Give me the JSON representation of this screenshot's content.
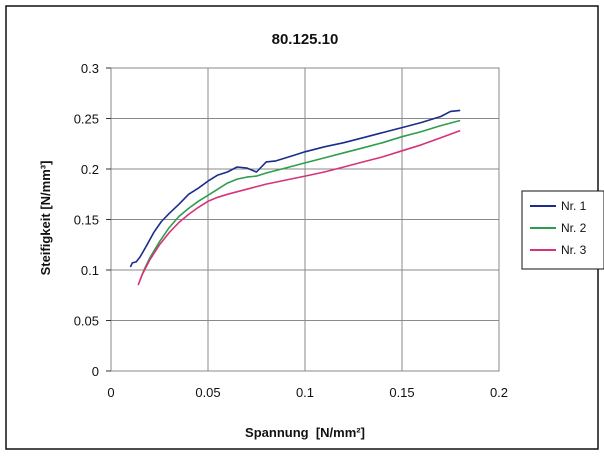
{
  "chart_data": {
    "type": "line",
    "title": "80.125.10",
    "xlabel": "Spannung  [N/mm²]",
    "ylabel": "Steifigkeit [N/mm³]",
    "xlim": [
      0,
      0.2
    ],
    "ylim": [
      0,
      0.3
    ],
    "x_ticks": [
      "0",
      "0.05",
      "0.1",
      "0.15",
      "0.2"
    ],
    "y_ticks": [
      "0",
      "0.05",
      "0.1",
      "0.15",
      "0.2",
      "0.25",
      "0.3"
    ],
    "grid": true,
    "legend_position": "right",
    "series": [
      {
        "name": "Nr. 1",
        "color": "#1a2d8a",
        "points": [
          [
            0.01,
            0.103
          ],
          [
            0.011,
            0.107
          ],
          [
            0.013,
            0.108
          ],
          [
            0.015,
            0.113
          ],
          [
            0.018,
            0.123
          ],
          [
            0.022,
            0.137
          ],
          [
            0.026,
            0.148
          ],
          [
            0.03,
            0.156
          ],
          [
            0.035,
            0.165
          ],
          [
            0.04,
            0.175
          ],
          [
            0.045,
            0.181
          ],
          [
            0.05,
            0.188
          ],
          [
            0.055,
            0.194
          ],
          [
            0.06,
            0.197
          ],
          [
            0.065,
            0.202
          ],
          [
            0.07,
            0.201
          ],
          [
            0.075,
            0.197
          ],
          [
            0.08,
            0.207
          ],
          [
            0.085,
            0.208
          ],
          [
            0.09,
            0.211
          ],
          [
            0.095,
            0.214
          ],
          [
            0.1,
            0.217
          ],
          [
            0.11,
            0.222
          ],
          [
            0.12,
            0.226
          ],
          [
            0.13,
            0.231
          ],
          [
            0.14,
            0.236
          ],
          [
            0.15,
            0.241
          ],
          [
            0.16,
            0.246
          ],
          [
            0.17,
            0.252
          ],
          [
            0.175,
            0.257
          ],
          [
            0.18,
            0.258
          ]
        ]
      },
      {
        "name": "Nr. 2",
        "color": "#2e9e4e",
        "points": [
          [
            0.015,
            0.09
          ],
          [
            0.017,
            0.1
          ],
          [
            0.02,
            0.112
          ],
          [
            0.025,
            0.128
          ],
          [
            0.03,
            0.142
          ],
          [
            0.035,
            0.153
          ],
          [
            0.04,
            0.161
          ],
          [
            0.045,
            0.168
          ],
          [
            0.05,
            0.174
          ],
          [
            0.055,
            0.18
          ],
          [
            0.06,
            0.186
          ],
          [
            0.065,
            0.19
          ],
          [
            0.07,
            0.192
          ],
          [
            0.075,
            0.193
          ],
          [
            0.08,
            0.196
          ],
          [
            0.09,
            0.201
          ],
          [
            0.1,
            0.206
          ],
          [
            0.11,
            0.211
          ],
          [
            0.12,
            0.216
          ],
          [
            0.13,
            0.221
          ],
          [
            0.14,
            0.226
          ],
          [
            0.15,
            0.232
          ],
          [
            0.16,
            0.237
          ],
          [
            0.17,
            0.243
          ],
          [
            0.18,
            0.248
          ]
        ]
      },
      {
        "name": "Nr. 3",
        "color": "#d6337a",
        "points": [
          [
            0.014,
            0.085
          ],
          [
            0.016,
            0.095
          ],
          [
            0.02,
            0.11
          ],
          [
            0.025,
            0.125
          ],
          [
            0.03,
            0.137
          ],
          [
            0.035,
            0.147
          ],
          [
            0.04,
            0.155
          ],
          [
            0.045,
            0.162
          ],
          [
            0.05,
            0.168
          ],
          [
            0.055,
            0.172
          ],
          [
            0.06,
            0.175
          ],
          [
            0.07,
            0.18
          ],
          [
            0.08,
            0.185
          ],
          [
            0.09,
            0.189
          ],
          [
            0.1,
            0.193
          ],
          [
            0.11,
            0.197
          ],
          [
            0.12,
            0.202
          ],
          [
            0.13,
            0.207
          ],
          [
            0.14,
            0.212
          ],
          [
            0.15,
            0.218
          ],
          [
            0.16,
            0.224
          ],
          [
            0.17,
            0.231
          ],
          [
            0.18,
            0.238
          ]
        ]
      }
    ]
  }
}
